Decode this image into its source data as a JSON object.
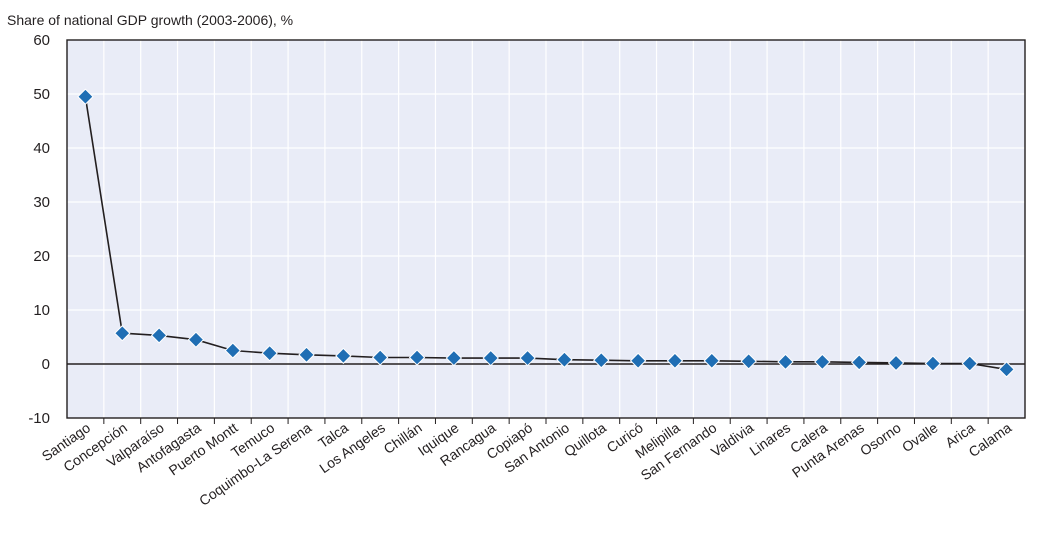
{
  "chart_data": {
    "type": "line",
    "title": "Share of national GDP growth (2003-2006), %",
    "xlabel": "",
    "ylabel": "",
    "ylim": [
      -10,
      60
    ],
    "yticks": [
      -10,
      0,
      10,
      20,
      30,
      40,
      50,
      60
    ],
    "grid": true,
    "categories": [
      "Santiago",
      "Concepción",
      "Valparaíso",
      "Antofagasta",
      "Puerto Montt",
      "Temuco",
      "Coquimbo-La Serena",
      "Talca",
      "Los Angeles",
      "Chillán",
      "Iquique",
      "Rancagua",
      "Copiapó",
      "San Antonio",
      "Quillota",
      "Curicó",
      "Melipilla",
      "San Fernando",
      "Valdivia",
      "Linares",
      "Calera",
      "Punta Arenas",
      "Osorno",
      "Ovalle",
      "Arica",
      "Calama"
    ],
    "series": [
      {
        "values": [
          49.5,
          5.7,
          5.3,
          4.5,
          2.5,
          2.0,
          1.7,
          1.5,
          1.2,
          1.2,
          1.1,
          1.1,
          1.1,
          0.8,
          0.7,
          0.6,
          0.6,
          0.6,
          0.5,
          0.4,
          0.4,
          0.3,
          0.2,
          0.1,
          0.1,
          -1.0
        ],
        "color": "#1f6eb4"
      }
    ],
    "colors": {
      "plot_bg": "#e9ecf7",
      "grid": "#ffffff",
      "axis": "#231f20",
      "line": "#231f20",
      "marker": "#1f6eb4",
      "marker_stroke": "#ffffff"
    }
  }
}
